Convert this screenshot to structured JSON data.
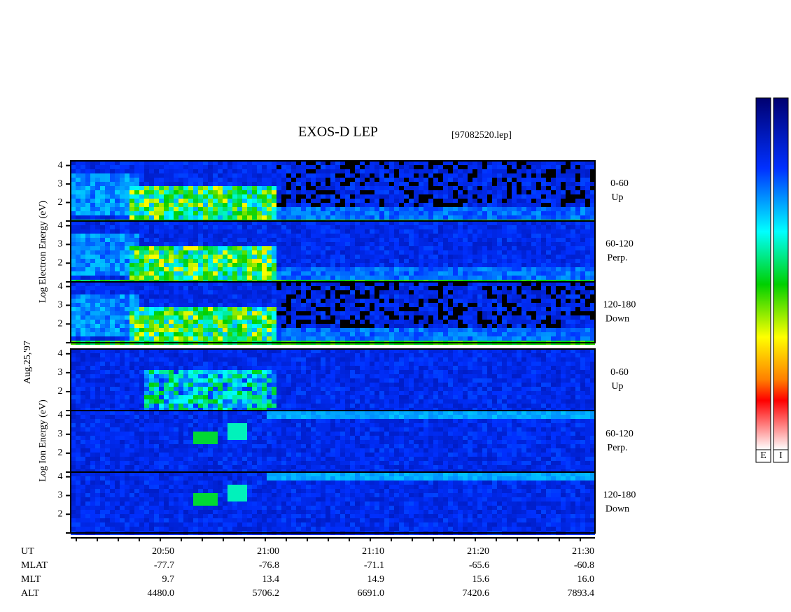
{
  "chart_data": {
    "type": "spectrogram",
    "title": "EXOS-D LEP",
    "file": "[97082520.lep]",
    "date": "Aug.25,'97",
    "electron_axis_label": "Log Electron Energy (eV)",
    "ion_axis_label": "Log Ion Energy (eV)",
    "ylim": [
      1,
      4.25
    ],
    "yticks": [
      2,
      3,
      4
    ],
    "panels": [
      {
        "species": "electron",
        "pitch": "0-60",
        "direction": "Up"
      },
      {
        "species": "electron",
        "pitch": "60-120",
        "direction": "Perp."
      },
      {
        "species": "electron",
        "pitch": "120-180",
        "direction": "Down"
      },
      {
        "species": "ion",
        "pitch": "0-60",
        "direction": "Up"
      },
      {
        "species": "ion",
        "pitch": "60-120",
        "direction": "Perp."
      },
      {
        "species": "ion",
        "pitch": "120-180",
        "direction": "Down"
      }
    ],
    "orbit": [
      {
        "label": "UT",
        "values": [
          "20:50",
          "21:00",
          "21:10",
          "21:20",
          "21:30"
        ]
      },
      {
        "label": "MLAT",
        "values": [
          "-77.7",
          "-76.8",
          "-71.1",
          "-65.6",
          "-60.8"
        ]
      },
      {
        "label": "MLT",
        "values": [
          "9.7",
          "13.4",
          "14.9",
          "15.6",
          "16.0"
        ]
      },
      {
        "label": "ALT",
        "values": [
          "4480.0",
          "5706.2",
          "6691.0",
          "7420.6",
          "7893.4"
        ]
      }
    ],
    "colorbars": [
      "E",
      "I"
    ]
  }
}
